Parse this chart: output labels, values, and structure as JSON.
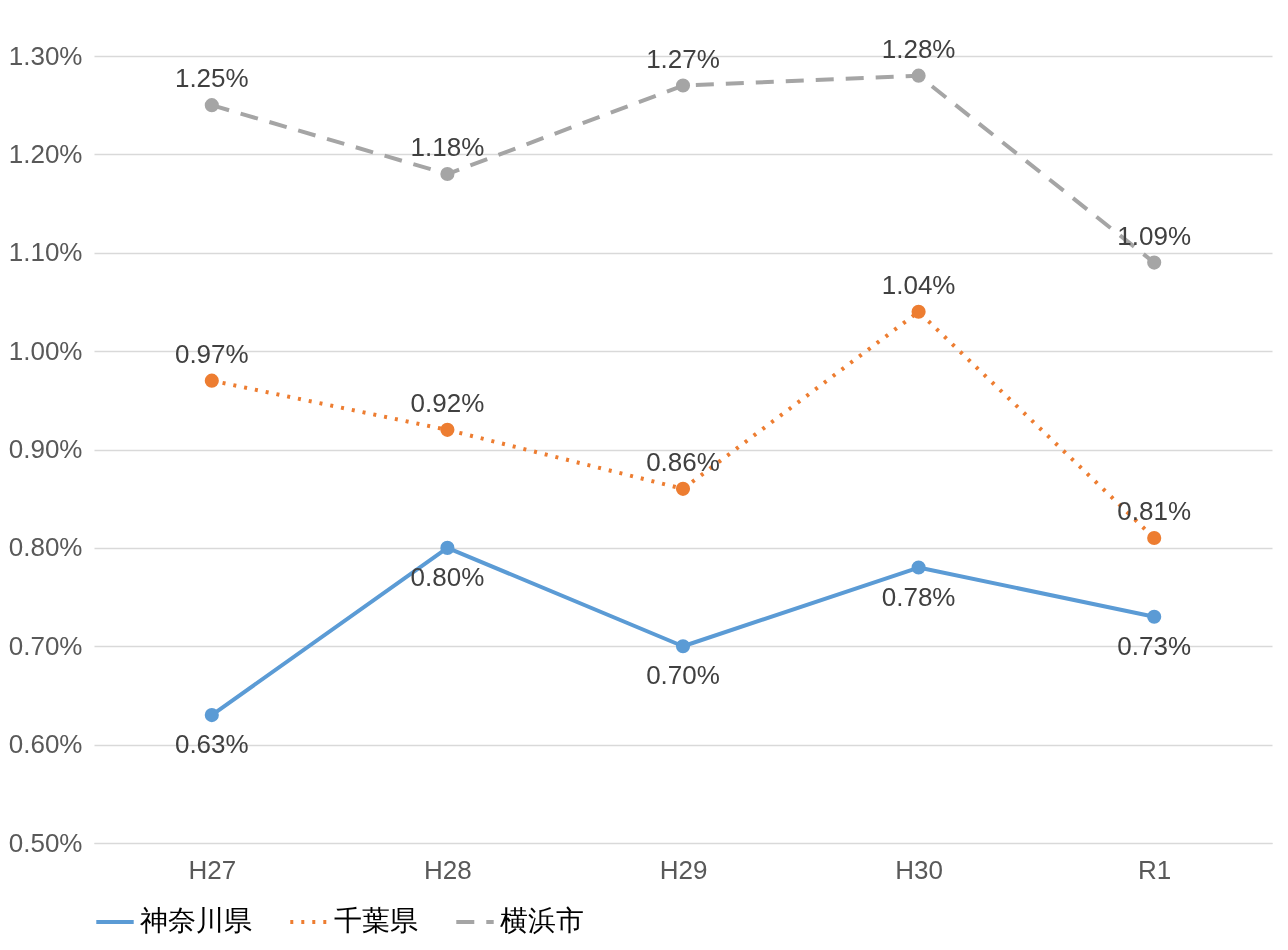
{
  "chart_data": {
    "type": "line",
    "categories": [
      "H27",
      "H28",
      "H29",
      "H30",
      "R1"
    ],
    "series": [
      {
        "name": "神奈川県",
        "color": "#5b9bd5",
        "line_style": "solid",
        "values": [
          0.63,
          0.8,
          0.7,
          0.78,
          0.73
        ],
        "value_labels": [
          "0.63%",
          "0.80%",
          "0.70%",
          "0.78%",
          "0.73%"
        ]
      },
      {
        "name": "千葉県",
        "color": "#ed7d31",
        "line_style": "dotted",
        "values": [
          0.97,
          0.92,
          0.86,
          1.04,
          0.81
        ],
        "value_labels": [
          "0.97%",
          "0.92%",
          "0.86%",
          "1.04%",
          "0.81%"
        ]
      },
      {
        "name": "横浜市",
        "color": "#a5a5a5",
        "line_style": "dashed",
        "values": [
          1.25,
          1.18,
          1.27,
          1.28,
          1.09
        ],
        "value_labels": [
          "1.25%",
          "1.18%",
          "1.27%",
          "1.28%",
          "1.09%"
        ]
      }
    ],
    "ylim": [
      0.5,
      1.3
    ],
    "yticks": [
      {
        "value": 0.5,
        "label": "0.50%"
      },
      {
        "value": 0.6,
        "label": "0.60%"
      },
      {
        "value": 0.7,
        "label": "0.70%"
      },
      {
        "value": 0.8,
        "label": "0.80%"
      },
      {
        "value": 0.9,
        "label": "0.90%"
      },
      {
        "value": 1.0,
        "label": "1.00%"
      },
      {
        "value": 1.1,
        "label": "1.10%"
      },
      {
        "value": 1.2,
        "label": "1.20%"
      },
      {
        "value": 1.3,
        "label": "1.30%"
      }
    ],
    "marker": "circle",
    "grid": "y",
    "legend": "bottom"
  }
}
